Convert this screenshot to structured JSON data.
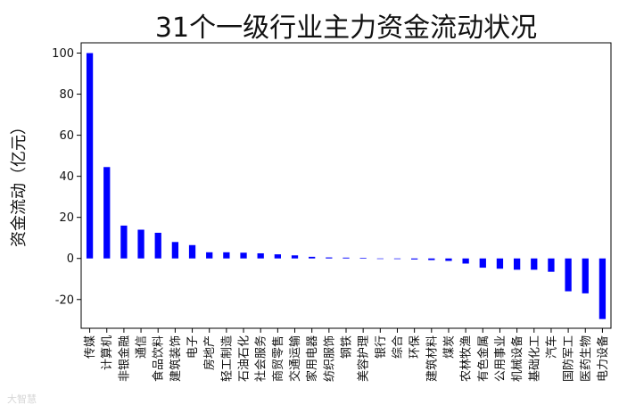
{
  "chart_data": {
    "type": "bar",
    "title": "31个一级行业主力资金流动状况",
    "xlabel": "",
    "ylabel": "资金流动（亿元）",
    "ylim": [
      -34,
      105
    ],
    "yticks": [
      100,
      80,
      60,
      40,
      20,
      0,
      -20
    ],
    "grid": false,
    "bar_color": "#0000ff",
    "categories": [
      "传媒",
      "计算机",
      "非银金融",
      "通信",
      "食品饮料",
      "建筑装饰",
      "电子",
      "房地产",
      "轻工制造",
      "石油石化",
      "社会服务",
      "商贸零售",
      "交通运输",
      "家用电器",
      "纺织服饰",
      "钢铁",
      "美容护理",
      "银行",
      "综合",
      "环保",
      "建筑材料",
      "煤炭",
      "农林牧渔",
      "有色金属",
      "公用事业",
      "机械设备",
      "基础化工",
      "汽车",
      "国防军工",
      "医药生物",
      "电力设备"
    ],
    "values": [
      100,
      44.5,
      16,
      14,
      12.5,
      8,
      6.5,
      3,
      3,
      2.8,
      2.5,
      2,
      1.5,
      0.8,
      0.5,
      0.4,
      0.3,
      0,
      -0.3,
      -0.5,
      -0.8,
      -1.2,
      -2.5,
      -4.5,
      -5,
      -5.5,
      -5.5,
      -6.5,
      -16,
      -17,
      -29.5
    ]
  },
  "watermark": "大智慧"
}
